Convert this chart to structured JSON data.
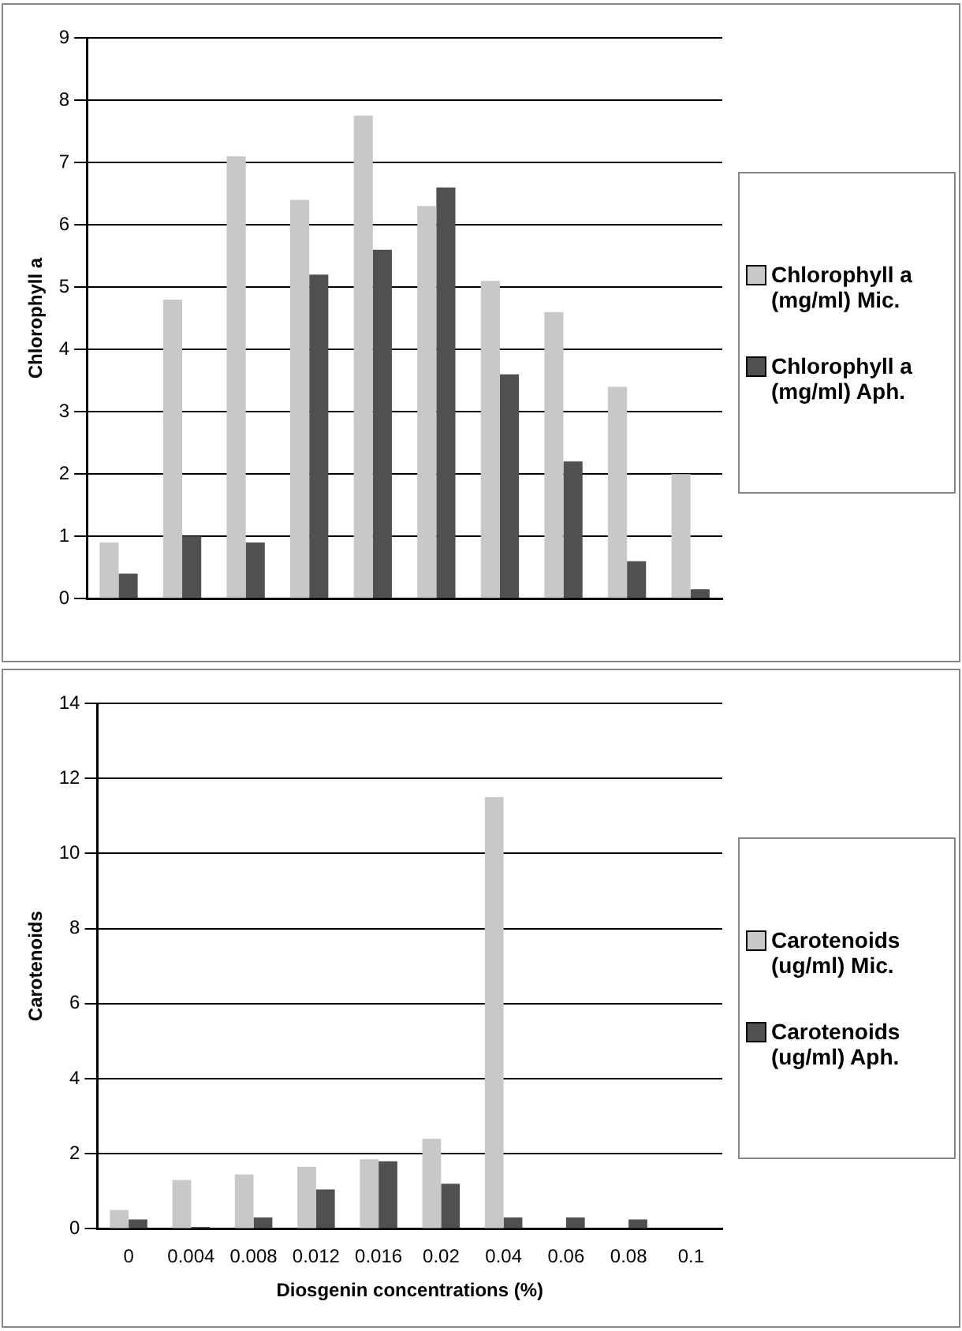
{
  "chart_data": [
    {
      "type": "bar",
      "ylabel": "Chlorophyll a",
      "categories": [
        null,
        null,
        null,
        null,
        null,
        null,
        null,
        null,
        null,
        null
      ],
      "series": [
        {
          "name": "Chlorophyll a (mg/ml) Mic.",
          "color": "#c8c8c8",
          "values": [
            0.9,
            4.8,
            7.1,
            6.4,
            7.75,
            6.3,
            5.1,
            4.6,
            3.4,
            2.0
          ]
        },
        {
          "name": "Chlorophyll a (mg/ml) Aph.",
          "color": "#505050",
          "values": [
            0.4,
            1.0,
            0.9,
            5.2,
            5.6,
            6.6,
            3.6,
            2.2,
            0.6,
            0.15
          ]
        }
      ],
      "ylim": [
        0,
        9
      ],
      "yticks": [
        0,
        1,
        2,
        3,
        4,
        5,
        6,
        7,
        8,
        9
      ],
      "grid": "y",
      "legend": "right"
    },
    {
      "type": "bar",
      "ylabel": "Carotenoids",
      "xlabel": "Diosgenin concentrations (%)",
      "categories": [
        "0",
        "0.004",
        "0.008",
        "0.012",
        "0.016",
        "0.02",
        "0.04",
        "0.06",
        "0.08",
        "0.1"
      ],
      "series": [
        {
          "name": "Carotenoids (ug/ml) Mic.",
          "color": "#c8c8c8",
          "values": [
            0.5,
            1.3,
            1.45,
            1.65,
            1.85,
            2.4,
            11.5,
            0,
            0,
            0
          ]
        },
        {
          "name": "Carotenoids (ug/ml) Aph.",
          "color": "#505050",
          "values": [
            0.25,
            0.05,
            0.3,
            1.05,
            1.8,
            1.2,
            0.3,
            0.3,
            0.25,
            0
          ]
        }
      ],
      "ylim": [
        0,
        14
      ],
      "yticks": [
        0,
        2,
        4,
        6,
        8,
        10,
        12,
        14
      ],
      "grid": "y",
      "legend": "right"
    }
  ]
}
